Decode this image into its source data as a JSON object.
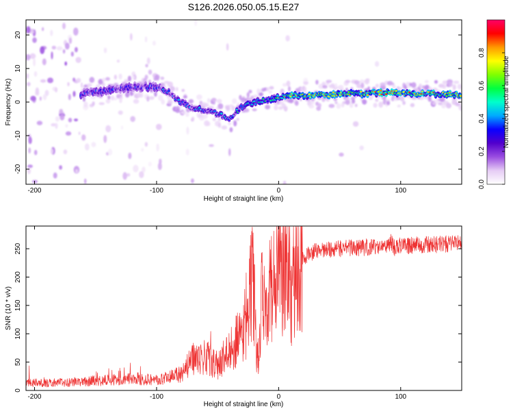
{
  "figure_title": "S126.2026.050.05.15.E27",
  "chart_data": [
    {
      "type": "heatmap",
      "title": "S126.2026.050.05.15.E27",
      "xlabel": "Height of straight line (km)",
      "ylabel": "Frequency (Hz)",
      "xlim": [
        -207,
        150
      ],
      "ylim": [
        -24.5,
        24.5
      ],
      "xticks": [
        -200,
        -100,
        0,
        100
      ],
      "yticks": [
        -20,
        -10,
        0,
        10,
        20
      ],
      "colorbar": {
        "label": "Normalized spectral amplitude",
        "range": [
          0,
          1
        ],
        "ticks": [
          0.0,
          0.2,
          0.4,
          0.6,
          0.8
        ],
        "colors": [
          "#ffffff",
          "#e6ccf5",
          "#9a4de0",
          "#5200cc",
          "#0a00ff",
          "#00aaff",
          "#00ffcc",
          "#00ff40",
          "#80ff00",
          "#ffff00",
          "#ff9900",
          "#ff0000",
          "#ff0066"
        ]
      },
      "ridge": {
        "x": [
          -160,
          -140,
          -120,
          -100,
          -90,
          -80,
          -70,
          -60,
          -50,
          -40,
          -35,
          -30,
          -20,
          -10,
          0,
          10,
          30,
          50,
          70,
          90,
          110,
          130,
          150
        ],
        "frequency": [
          2.5,
          3.5,
          4.5,
          4.5,
          3,
          0,
          -2,
          -2.5,
          -3.5,
          -5,
          -3,
          -1.5,
          0,
          0.5,
          1.5,
          2,
          2,
          2.5,
          2.5,
          3,
          2.5,
          2.5,
          2
        ]
      }
    },
    {
      "type": "line",
      "xlabel": "Height of straight line (km)",
      "ylabel": "SNR (10 * v/v)",
      "xlim": [
        -207,
        150
      ],
      "ylim": [
        0,
        290
      ],
      "xticks": [
        -200,
        -100,
        0,
        100
      ],
      "yticks": [
        0,
        50,
        100,
        150,
        200,
        250
      ],
      "color": "#ee3333",
      "series": [
        {
          "name": "SNR",
          "x": [
            -207,
            -190,
            -170,
            -150,
            -130,
            -110,
            -100,
            -90,
            -80,
            -75,
            -70,
            -65,
            -60,
            -55,
            -50,
            -45,
            -40,
            -35,
            -30,
            -25,
            -22,
            -20,
            -18,
            -16,
            -14,
            -12,
            -10,
            -7,
            -5,
            -3,
            0,
            3,
            5,
            8,
            10,
            12,
            14,
            16,
            20,
            25,
            30,
            35,
            40,
            50,
            60,
            80,
            90,
            92,
            95,
            100,
            120,
            140,
            150
          ],
          "values": [
            14,
            13,
            15,
            17,
            19,
            21,
            18,
            22,
            30,
            42,
            55,
            60,
            58,
            52,
            42,
            58,
            72,
            88,
            95,
            165,
            205,
            160,
            75,
            60,
            175,
            185,
            175,
            175,
            195,
            200,
            210,
            205,
            225,
            240,
            155,
            190,
            215,
            220,
            228,
            242,
            245,
            247,
            248,
            250,
            252,
            253,
            255,
            265,
            250,
            255,
            257,
            259,
            260
          ]
        }
      ]
    }
  ]
}
